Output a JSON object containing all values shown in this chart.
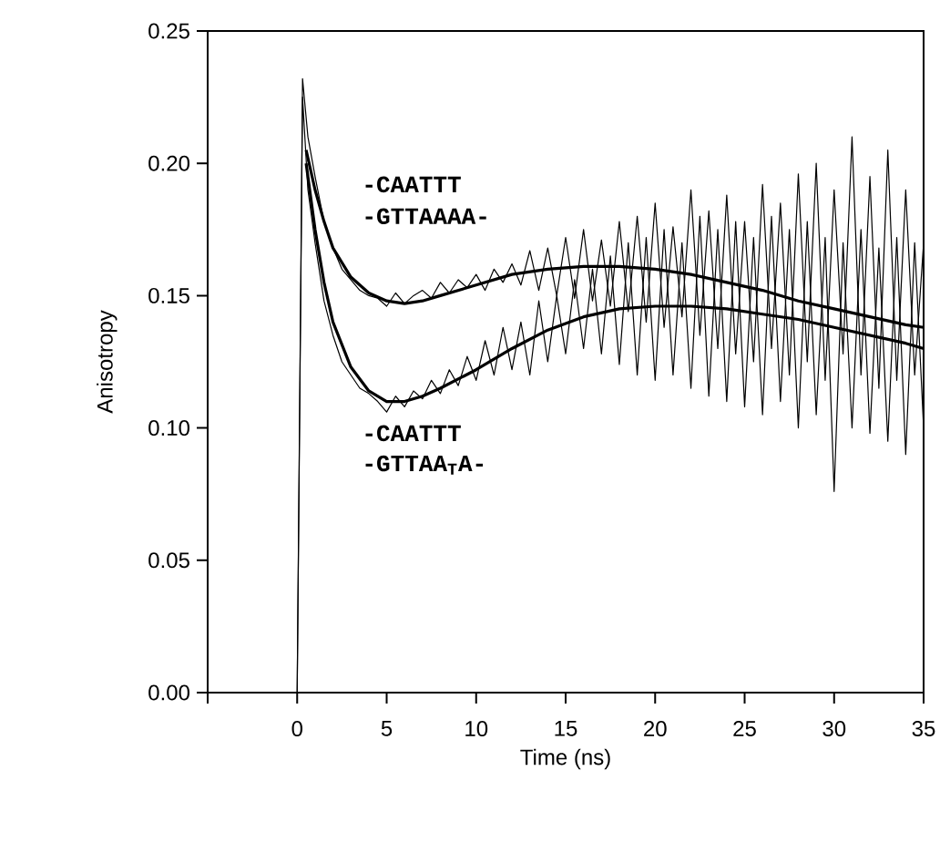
{
  "chart_data": {
    "type": "line",
    "xlabel": "Time (ns)",
    "ylabel": "Anisotropy",
    "xlim": [
      -5,
      35
    ],
    "ylim": [
      0,
      0.25
    ],
    "xticks": [
      {
        "value": -5,
        "label": null
      },
      0,
      5,
      10,
      15,
      20,
      25,
      30,
      35
    ],
    "yticks": [
      {
        "value": 0,
        "label": "0.00"
      },
      {
        "value": 0.05,
        "label": "0.05"
      },
      {
        "value": 0.1,
        "label": "0.10"
      },
      {
        "value": 0.15,
        "label": "0.15"
      },
      {
        "value": 0.2,
        "label": "0.20"
      },
      {
        "value": 0.25,
        "label": "0.25"
      }
    ],
    "grid": false,
    "marker": "none",
    "line_style": "solid",
    "annotations": [
      "-CAATTT",
      "-GTTAAAA-",
      "-CAATTT",
      "-GTTAA$_{T}$A-"
    ],
    "series": [
      {
        "color": "#000000",
        "x": [
          0,
          0.3,
          0.6,
          1,
          1.5,
          2,
          2.5,
          3,
          3.5,
          4,
          4.5,
          5,
          5.5,
          6,
          6.5,
          7,
          7.5,
          8,
          8.5,
          9,
          9.5,
          10,
          10.5,
          11,
          11.5,
          12,
          12.5,
          13,
          13.5,
          14,
          14.5,
          15,
          15.5,
          16,
          16.5,
          17,
          17.5,
          18,
          18.5,
          19,
          19.5,
          20,
          20.5,
          21,
          21.5,
          22,
          22.5,
          23,
          23.5,
          24,
          24.5,
          25,
          25.5,
          26,
          26.5,
          27,
          27.5,
          28,
          28.5,
          29,
          29.5,
          30,
          30.5,
          31,
          31.5,
          32,
          32.5,
          33,
          33.5,
          34,
          34.5,
          35
        ],
        "values": [
          0,
          0.232,
          0.21,
          0.195,
          0.178,
          0.168,
          0.16,
          0.156,
          0.152,
          0.15,
          0.149,
          0.146,
          0.151,
          0.147,
          0.15,
          0.152,
          0.149,
          0.155,
          0.151,
          0.156,
          0.153,
          0.158,
          0.152,
          0.16,
          0.155,
          0.162,
          0.154,
          0.167,
          0.152,
          0.168,
          0.15,
          0.172,
          0.149,
          0.175,
          0.148,
          0.171,
          0.146,
          0.178,
          0.144,
          0.18,
          0.14,
          0.185,
          0.138,
          0.176,
          0.142,
          0.19,
          0.135,
          0.182,
          0.13,
          0.188,
          0.128,
          0.178,
          0.125,
          0.192,
          0.13,
          0.185,
          0.12,
          0.196,
          0.125,
          0.2,
          0.118,
          0.19,
          0.128,
          0.21,
          0.12,
          0.195,
          0.115,
          0.205,
          0.118,
          0.19,
          0.12,
          0.17
        ]
      },
      {
        "color": "#000000",
        "x": [
          0,
          0.3,
          0.6,
          1,
          1.5,
          2,
          2.5,
          3,
          3.5,
          4,
          4.5,
          5,
          5.5,
          6,
          6.5,
          7,
          7.5,
          8,
          8.5,
          9,
          9.5,
          10,
          10.5,
          11,
          11.5,
          12,
          12.5,
          13,
          13.5,
          14,
          14.5,
          15,
          15.5,
          16,
          16.5,
          17,
          17.5,
          18,
          18.5,
          19,
          19.5,
          20,
          20.5,
          21,
          21.5,
          22,
          22.5,
          23,
          23.5,
          24,
          24.5,
          25,
          25.5,
          26,
          26.5,
          27,
          27.5,
          28,
          28.5,
          29,
          29.5,
          30,
          30.5,
          31,
          31.5,
          32,
          32.5,
          33,
          33.5,
          34,
          34.5,
          35
        ],
        "values": [
          0,
          0.225,
          0.19,
          0.17,
          0.148,
          0.135,
          0.125,
          0.12,
          0.115,
          0.113,
          0.11,
          0.106,
          0.112,
          0.108,
          0.114,
          0.111,
          0.118,
          0.113,
          0.122,
          0.116,
          0.127,
          0.118,
          0.133,
          0.12,
          0.138,
          0.122,
          0.14,
          0.12,
          0.148,
          0.125,
          0.15,
          0.128,
          0.156,
          0.13,
          0.16,
          0.128,
          0.165,
          0.124,
          0.17,
          0.12,
          0.172,
          0.118,
          0.175,
          0.12,
          0.17,
          0.115,
          0.18,
          0.112,
          0.175,
          0.11,
          0.178,
          0.108,
          0.172,
          0.105,
          0.18,
          0.11,
          0.175,
          0.1,
          0.178,
          0.105,
          0.172,
          0.076,
          0.17,
          0.1,
          0.175,
          0.098,
          0.168,
          0.095,
          0.172,
          0.09,
          0.17,
          0.1
        ]
      },
      {
        "color": "#000000",
        "x": [
          0.5,
          1,
          1.5,
          2,
          3,
          4,
          5,
          6,
          7,
          8,
          10,
          12,
          14,
          16,
          18,
          20,
          22,
          24,
          26,
          28,
          30,
          32,
          34,
          35
        ],
        "values": [
          0.205,
          0.19,
          0.178,
          0.168,
          0.157,
          0.151,
          0.148,
          0.147,
          0.148,
          0.15,
          0.154,
          0.158,
          0.16,
          0.161,
          0.161,
          0.16,
          0.158,
          0.155,
          0.152,
          0.148,
          0.145,
          0.142,
          0.139,
          0.138
        ]
      },
      {
        "color": "#000000",
        "x": [
          0.5,
          1,
          1.5,
          2,
          3,
          4,
          5,
          6,
          7,
          8,
          10,
          12,
          14,
          16,
          18,
          20,
          22,
          24,
          26,
          28,
          30,
          32,
          34,
          35
        ],
        "values": [
          0.2,
          0.175,
          0.155,
          0.14,
          0.123,
          0.114,
          0.11,
          0.11,
          0.112,
          0.115,
          0.122,
          0.13,
          0.137,
          0.142,
          0.145,
          0.146,
          0.146,
          0.145,
          0.143,
          0.141,
          0.138,
          0.135,
          0.132,
          0.13
        ]
      }
    ]
  }
}
